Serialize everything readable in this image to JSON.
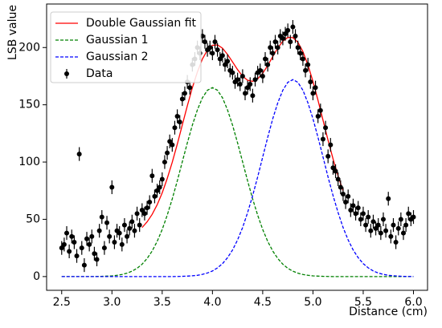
{
  "chart_data": {
    "type": "scatter",
    "x_label": "Distance (cm)",
    "y_label": "LSB value",
    "xlim": [
      2.35,
      6.14
    ],
    "ylim": [
      -12,
      238
    ],
    "xticks": [
      2.5,
      {
        "value": 3,
        "label": "3.0"
      },
      3.5,
      {
        "value": 4,
        "label": "4.0"
      },
      4.5,
      {
        "value": 5,
        "label": "5.0"
      },
      5.5,
      {
        "value": 6,
        "label": "6.0"
      }
    ],
    "yticks": [
      0,
      50,
      100,
      150,
      200
    ],
    "legend": "upper left",
    "x": [
      2.5,
      2.55,
      2.6,
      2.65,
      2.7,
      2.75,
      2.8,
      2.85,
      2.9,
      2.95,
      3.0,
      3.05,
      3.1,
      3.15,
      3.2,
      3.25,
      3.3,
      3.35,
      3.4,
      3.45,
      3.5,
      3.55,
      3.6,
      3.65,
      3.7,
      3.75,
      3.8,
      3.85,
      3.9,
      3.95,
      4.0,
      4.05,
      4.1,
      4.15,
      4.2,
      4.25,
      4.3,
      4.35,
      4.4,
      4.45,
      4.5,
      4.55,
      4.6,
      4.65,
      4.7,
      4.75,
      4.8,
      4.85,
      4.9,
      4.95,
      5.0,
      5.05,
      5.1,
      5.15,
      5.2,
      5.25,
      5.3,
      5.35,
      5.4,
      5.45,
      5.5,
      5.55,
      5.6,
      5.65,
      5.7,
      5.75,
      5.8,
      5.85,
      5.9,
      5.95,
      6.0
    ],
    "error": 6,
    "series": [
      {
        "name": "Double Gaussian fit",
        "color": "#ff0000",
        "dashed": false,
        "values": [
          null,
          null,
          null,
          null,
          null,
          null,
          null,
          null,
          null,
          null,
          null,
          null,
          null,
          null,
          null,
          null,
          42.8,
          47.8,
          54.3,
          62.7,
          73.1,
          85.6,
          99.8,
          115.6,
          132.4,
          149.1,
          164.9,
          178.6,
          190.0,
          197.8,
          201.9,
          202.3,
          199.4,
          194.0,
          187.4,
          180.7,
          175.0,
          171.4,
          170.5,
          172.6,
          177.5,
          184.3,
          192.1,
          199.5,
          205.5,
          208.8,
          208.7,
          204.6,
          196.5,
          184.8,
          170.4,
          154.0,
          136.6,
          119.1,
          102.7,
          87.9,
          74.8,
          null,
          null,
          null,
          null,
          null,
          null,
          null,
          null,
          null,
          null,
          null,
          null,
          null,
          null
        ]
      },
      {
        "name": "Gaussian 1",
        "color": "#008000",
        "dashed": true,
        "values": [
          0,
          0,
          0,
          0,
          0,
          0,
          0,
          0.1,
          0.2,
          0.4,
          0.6,
          1.1,
          1.8,
          3.0,
          4.7,
          7.2,
          10.8,
          15.8,
          22.3,
          30.7,
          41.1,
          53.6,
          67.8,
          83.5,
          100.2,
          116.7,
          132.2,
          145.5,
          156.1,
          162.7,
          165,
          162.7,
          156.1,
          145.5,
          132.2,
          116.7,
          100.2,
          83.5,
          67.8,
          53.6,
          41.1,
          30.7,
          22.3,
          15.8,
          10.8,
          7.2,
          4.7,
          3.0,
          1.8,
          1.1,
          0.6,
          0.4,
          0.2,
          0.1,
          0,
          0,
          0,
          0,
          0,
          0,
          0,
          0,
          0,
          0,
          0,
          0,
          0,
          0,
          0,
          0,
          0
        ]
      },
      {
        "name": "Gaussian 2",
        "color": "#0000ff",
        "dashed": true,
        "values": [
          0,
          0,
          0,
          0,
          0,
          0,
          0,
          0,
          0,
          0,
          0,
          0,
          0,
          0,
          0,
          0,
          0,
          0,
          0,
          0,
          0,
          0,
          0,
          0.1,
          0.2,
          0.4,
          0.7,
          1.1,
          1.9,
          3.1,
          4.9,
          7.6,
          11.3,
          16.5,
          23.2,
          32.0,
          42.8,
          55.9,
          70.7,
          87.0,
          104.4,
          121.6,
          137.8,
          151.7,
          162.7,
          169.6,
          172,
          169.6,
          162.7,
          151.7,
          137.8,
          121.6,
          104.4,
          87.0,
          70.7,
          55.9,
          42.8,
          32.0,
          23.2,
          16.5,
          11.3,
          7.6,
          4.9,
          3.1,
          1.9,
          1.1,
          0.7,
          0.4,
          0.2,
          0.1,
          0
        ]
      },
      {
        "name": "Data",
        "color": "#000000",
        "points": true,
        "x": [
          2.5,
          2.525,
          2.55,
          2.575,
          2.6,
          2.625,
          2.65,
          2.675,
          2.7,
          2.725,
          2.75,
          2.775,
          2.8,
          2.825,
          2.85,
          2.875,
          2.9,
          2.925,
          2.95,
          2.975,
          3.0,
          3.025,
          3.05,
          3.075,
          3.1,
          3.125,
          3.15,
          3.175,
          3.2,
          3.225,
          3.25,
          3.275,
          3.3,
          3.325,
          3.35,
          3.375,
          3.4,
          3.425,
          3.45,
          3.475,
          3.5,
          3.525,
          3.55,
          3.575,
          3.6,
          3.625,
          3.65,
          3.675,
          3.7,
          3.725,
          3.75,
          3.775,
          3.8,
          3.825,
          3.85,
          3.875,
          3.9,
          3.925,
          3.95,
          3.975,
          4.0,
          4.025,
          4.05,
          4.075,
          4.1,
          4.125,
          4.15,
          4.175,
          4.2,
          4.225,
          4.25,
          4.275,
          4.3,
          4.325,
          4.35,
          4.375,
          4.4,
          4.425,
          4.45,
          4.475,
          4.5,
          4.525,
          4.55,
          4.575,
          4.6,
          4.625,
          4.65,
          4.675,
          4.7,
          4.725,
          4.75,
          4.775,
          4.8,
          4.825,
          4.85,
          4.875,
          4.9,
          4.925,
          4.95,
          4.975,
          5.0,
          5.025,
          5.05,
          5.075,
          5.1,
          5.125,
          5.15,
          5.175,
          5.2,
          5.225,
          5.25,
          5.275,
          5.3,
          5.325,
          5.35,
          5.375,
          5.4,
          5.425,
          5.45,
          5.475,
          5.5,
          5.525,
          5.55,
          5.575,
          5.6,
          5.625,
          5.65,
          5.675,
          5.7,
          5.725,
          5.75,
          5.775,
          5.8,
          5.825,
          5.85,
          5.875,
          5.9,
          5.925,
          5.95,
          5.975,
          6.0
        ],
        "values": [
          25,
          28,
          38,
          22,
          35,
          30,
          18,
          107,
          25,
          10,
          33,
          28,
          35,
          20,
          15,
          40,
          52,
          25,
          47,
          35,
          78,
          30,
          40,
          38,
          28,
          45,
          35,
          42,
          48,
          40,
          55,
          45,
          58,
          55,
          60,
          65,
          88,
          70,
          75,
          78,
          85,
          100,
          108,
          118,
          115,
          130,
          140,
          135,
          155,
          160,
          170,
          165,
          185,
          190,
          200,
          195,
          210,
          205,
          198,
          200,
          195,
          205,
          198,
          190,
          193,
          185,
          188,
          180,
          178,
          170,
          172,
          168,
          175,
          160,
          165,
          168,
          158,
          172,
          178,
          180,
          175,
          190,
          185,
          200,
          195,
          205,
          200,
          210,
          208,
          212,
          215,
          205,
          218,
          210,
          200,
          195,
          190,
          180,
          185,
          170,
          160,
          165,
          140,
          145,
          120,
          130,
          105,
          115,
          95,
          92,
          85,
          78,
          72,
          65,
          70,
          58,
          62,
          55,
          60,
          50,
          55,
          45,
          52,
          40,
          48,
          42,
          45,
          38,
          50,
          40,
          68,
          35,
          45,
          30,
          42,
          50,
          38,
          45,
          55,
          50,
          52
        ]
      }
    ]
  }
}
